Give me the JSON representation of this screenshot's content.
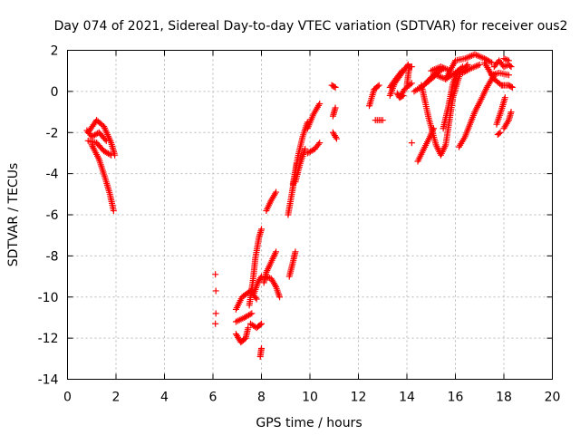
{
  "chart_data": {
    "type": "scatter",
    "title": "Day 074 of 2021, Sidereal Day-to-day VTEC variation (SDTVAR) for receiver ous2",
    "xlabel": "GPS time / hours",
    "ylabel": "SDTVAR / TECUs",
    "xlim": [
      0,
      20
    ],
    "ylim": [
      -14,
      2
    ],
    "xticks": [
      0,
      2,
      4,
      6,
      8,
      10,
      12,
      14,
      16,
      18,
      20
    ],
    "yticks": [
      -14,
      -12,
      -10,
      -8,
      -6,
      -4,
      -2,
      0,
      2
    ],
    "grid": true,
    "marker": "+",
    "series": [
      {
        "name": "SDTVAR",
        "color": "#ff0000",
        "tracks": [
          [
            [
              0.85,
              -2.0
            ],
            [
              1.2,
              -1.4
            ],
            [
              1.5,
              -1.7
            ],
            [
              1.8,
              -2.5
            ],
            [
              1.95,
              -3.1
            ]
          ],
          [
            [
              0.85,
              -2.4
            ],
            [
              1.2,
              -2.5
            ],
            [
              1.5,
              -2.9
            ],
            [
              1.8,
              -3.1
            ]
          ],
          [
            [
              1.0,
              -2.6
            ],
            [
              1.3,
              -3.3
            ],
            [
              1.55,
              -4.2
            ],
            [
              1.75,
              -5.0
            ],
            [
              1.9,
              -5.8
            ]
          ],
          [
            [
              0.8,
              -1.9
            ],
            [
              1.0,
              -2.2
            ],
            [
              1.3,
              -2.0
            ],
            [
              1.6,
              -2.4
            ]
          ],
          [
            [
              6.95,
              -10.6
            ],
            [
              7.2,
              -10.0
            ],
            [
              7.55,
              -9.7
            ],
            [
              7.8,
              -10.1
            ]
          ],
          [
            [
              6.95,
              -11.8
            ],
            [
              7.15,
              -12.2
            ],
            [
              7.35,
              -12.0
            ],
            [
              7.45,
              -11.5
            ]
          ],
          [
            [
              6.95,
              -11.2
            ],
            [
              7.3,
              -11.0
            ],
            [
              7.6,
              -10.8
            ]
          ],
          [
            [
              7.5,
              -10.4
            ],
            [
              7.65,
              -9.2
            ],
            [
              7.75,
              -8.1
            ],
            [
              7.9,
              -7.1
            ],
            [
              8.0,
              -6.7
            ]
          ],
          [
            [
              7.55,
              -11.3
            ],
            [
              7.8,
              -11.5
            ],
            [
              8.0,
              -11.3
            ]
          ],
          [
            [
              7.7,
              -9.8
            ],
            [
              7.85,
              -9.3
            ],
            [
              8.0,
              -9.0
            ]
          ],
          [
            [
              7.95,
              -12.9
            ],
            [
              8.0,
              -12.5
            ]
          ],
          [
            [
              8.1,
              -9.3
            ],
            [
              8.2,
              -8.8
            ],
            [
              8.4,
              -8.3
            ],
            [
              8.6,
              -7.8
            ]
          ],
          [
            [
              8.15,
              -9.0
            ],
            [
              8.4,
              -9.1
            ],
            [
              8.6,
              -9.5
            ],
            [
              8.75,
              -10.0
            ]
          ],
          [
            [
              8.2,
              -5.8
            ],
            [
              8.4,
              -5.3
            ],
            [
              8.6,
              -4.9
            ]
          ],
          [
            [
              9.15,
              -9.0
            ],
            [
              9.3,
              -8.3
            ],
            [
              9.4,
              -7.8
            ]
          ],
          [
            [
              9.1,
              -6.0
            ],
            [
              9.25,
              -5.0
            ],
            [
              9.35,
              -4.3
            ],
            [
              9.45,
              -3.5
            ]
          ],
          [
            [
              9.3,
              -4.5
            ],
            [
              9.5,
              -3.2
            ],
            [
              9.7,
              -2.2
            ],
            [
              9.9,
              -1.5
            ]
          ],
          [
            [
              9.4,
              -4.4
            ],
            [
              9.6,
              -3.5
            ],
            [
              9.8,
              -2.8
            ]
          ],
          [
            [
              9.9,
              -3.0
            ],
            [
              10.2,
              -2.8
            ],
            [
              10.4,
              -2.5
            ]
          ],
          [
            [
              9.9,
              -1.8
            ],
            [
              10.15,
              -1.1
            ],
            [
              10.4,
              -0.6
            ]
          ],
          [
            [
              10.9,
              0.3
            ],
            [
              11.05,
              0.2
            ]
          ],
          [
            [
              10.95,
              -1.2
            ],
            [
              11.05,
              -0.8
            ]
          ],
          [
            [
              10.95,
              -2.0
            ],
            [
              11.1,
              -2.3
            ]
          ],
          [
            [
              12.45,
              -0.7
            ],
            [
              12.65,
              0.1
            ],
            [
              12.85,
              0.3
            ]
          ],
          [
            [
              12.7,
              -1.4
            ],
            [
              13.0,
              -1.4
            ]
          ],
          [
            [
              13.3,
              -0.2
            ],
            [
              13.5,
              0.4
            ],
            [
              13.8,
              0.9
            ],
            [
              14.05,
              1.3
            ]
          ],
          [
            [
              13.3,
              0.2
            ],
            [
              13.6,
              0.7
            ],
            [
              13.8,
              1.0
            ]
          ],
          [
            [
              13.7,
              -0.3
            ],
            [
              13.9,
              0.1
            ],
            [
              14.2,
              0.4
            ]
          ],
          [
            [
              13.6,
              -0.1
            ],
            [
              13.7,
              -0.3
            ],
            [
              13.85,
              -0.2
            ]
          ],
          [
            [
              14.0,
              0.3
            ],
            [
              14.1,
              1.2
            ],
            [
              14.2,
              1.2
            ]
          ],
          [
            [
              14.3,
              0.0
            ],
            [
              14.7,
              0.3
            ],
            [
              15.1,
              0.8
            ],
            [
              15.5,
              1.1
            ]
          ],
          [
            [
              14.45,
              -3.4
            ],
            [
              14.7,
              -2.8
            ],
            [
              14.95,
              -2.2
            ],
            [
              15.1,
              -1.8
            ]
          ],
          [
            [
              14.6,
              0.3
            ],
            [
              14.9,
              -1.3
            ],
            [
              15.2,
              -2.6
            ],
            [
              15.4,
              -3.1
            ],
            [
              15.6,
              -2.6
            ],
            [
              15.9,
              -0.3
            ],
            [
              16.2,
              0.9
            ],
            [
              16.5,
              1.3
            ]
          ],
          [
            [
              14.8,
              0.4
            ],
            [
              15.2,
              0.8
            ],
            [
              15.6,
              0.6
            ],
            [
              16.0,
              0.9
            ],
            [
              16.3,
              1.2
            ]
          ],
          [
            [
              15.0,
              1.0
            ],
            [
              15.4,
              1.2
            ],
            [
              15.8,
              1.0
            ]
          ],
          [
            [
              15.5,
              -1.8
            ],
            [
              15.7,
              -0.8
            ],
            [
              15.9,
              0.4
            ],
            [
              16.1,
              1.0
            ]
          ],
          [
            [
              15.6,
              0.6
            ],
            [
              16.0,
              1.5
            ],
            [
              16.4,
              1.6
            ],
            [
              16.8,
              1.8
            ],
            [
              17.2,
              1.6
            ],
            [
              17.5,
              1.4
            ]
          ],
          [
            [
              16.15,
              -2.7
            ],
            [
              16.4,
              -2.2
            ],
            [
              16.6,
              -1.6
            ],
            [
              16.8,
              -1.0
            ]
          ],
          [
            [
              16.3,
              0.9
            ],
            [
              16.6,
              1.1
            ],
            [
              17.0,
              1.3
            ]
          ],
          [
            [
              16.8,
              -1.0
            ],
            [
              17.1,
              -0.3
            ],
            [
              17.3,
              0.2
            ],
            [
              17.6,
              0.8
            ]
          ],
          [
            [
              17.2,
              1.4
            ],
            [
              17.4,
              1.0
            ],
            [
              17.6,
              0.6
            ],
            [
              17.9,
              0.3
            ]
          ],
          [
            [
              17.6,
              1.2
            ],
            [
              17.8,
              1.5
            ],
            [
              18.0,
              1.2
            ],
            [
              18.2,
              1.3
            ],
            [
              18.3,
              1.2
            ]
          ],
          [
            [
              17.5,
              0.8
            ],
            [
              17.8,
              0.9
            ],
            [
              18.2,
              0.8
            ]
          ],
          [
            [
              18.0,
              1.6
            ],
            [
              18.2,
              1.5
            ]
          ],
          [
            [
              17.95,
              0.3
            ],
            [
              18.2,
              0.3
            ],
            [
              18.35,
              0.2
            ]
          ],
          [
            [
              17.7,
              -1.6
            ],
            [
              17.9,
              -0.9
            ],
            [
              18.05,
              -0.3
            ]
          ],
          [
            [
              18.0,
              -1.8
            ],
            [
              18.2,
              -1.4
            ],
            [
              18.3,
              -1.0
            ]
          ],
          [
            [
              17.75,
              -2.1
            ],
            [
              17.85,
              -2.0
            ]
          ]
        ],
        "points": [
          [
            6.1,
            -8.9
          ],
          [
            6.12,
            -9.7
          ],
          [
            6.12,
            -10.8
          ],
          [
            6.1,
            -11.3
          ],
          [
            14.1,
            1.2
          ],
          [
            14.2,
            -2.5
          ]
        ]
      }
    ]
  }
}
